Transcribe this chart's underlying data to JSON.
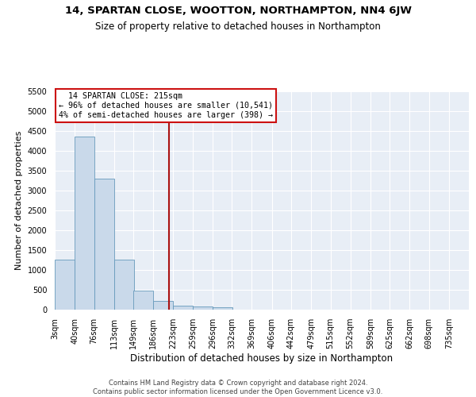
{
  "title": "14, SPARTAN CLOSE, WOOTTON, NORTHAMPTON, NN4 6JW",
  "subtitle": "Size of property relative to detached houses in Northampton",
  "xlabel": "Distribution of detached houses by size in Northampton",
  "ylabel": "Number of detached properties",
  "footer_line1": "Contains HM Land Registry data © Crown copyright and database right 2024.",
  "footer_line2": "Contains public sector information licensed under the Open Government Licence v3.0.",
  "annotation_line1": "  14 SPARTAN CLOSE: 215sqm  ",
  "annotation_line2": "← 96% of detached houses are smaller (10,541)",
  "annotation_line3": "4% of semi-detached houses are larger (398) →",
  "property_line_x": 215,
  "bar_color": "#c9d9ea",
  "bar_edge_color": "#6699bb",
  "property_line_color": "#aa1111",
  "annotation_box_edgecolor": "#cc1111",
  "background_color": "#e8eef6",
  "grid_color": "#ffffff",
  "categories": [
    "3sqm",
    "40sqm",
    "76sqm",
    "113sqm",
    "149sqm",
    "186sqm",
    "223sqm",
    "259sqm",
    "296sqm",
    "332sqm",
    "369sqm",
    "406sqm",
    "442sqm",
    "479sqm",
    "515sqm",
    "552sqm",
    "589sqm",
    "625sqm",
    "662sqm",
    "698sqm",
    "735sqm"
  ],
  "bin_edges": [
    3,
    40,
    76,
    113,
    149,
    186,
    223,
    259,
    296,
    332,
    369,
    406,
    442,
    479,
    515,
    552,
    589,
    625,
    662,
    698,
    735
  ],
  "bin_width": 37,
  "values": [
    1260,
    4360,
    3300,
    1260,
    490,
    215,
    100,
    75,
    60,
    0,
    0,
    0,
    0,
    0,
    0,
    0,
    0,
    0,
    0,
    0,
    0
  ],
  "ylim_max": 5500,
  "yticks": [
    0,
    500,
    1000,
    1500,
    2000,
    2500,
    3000,
    3500,
    4000,
    4500,
    5000,
    5500
  ],
  "title_fontsize": 9.5,
  "subtitle_fontsize": 8.5,
  "ylabel_fontsize": 8,
  "xlabel_fontsize": 8.5,
  "tick_fontsize": 7,
  "footer_fontsize": 6.0
}
